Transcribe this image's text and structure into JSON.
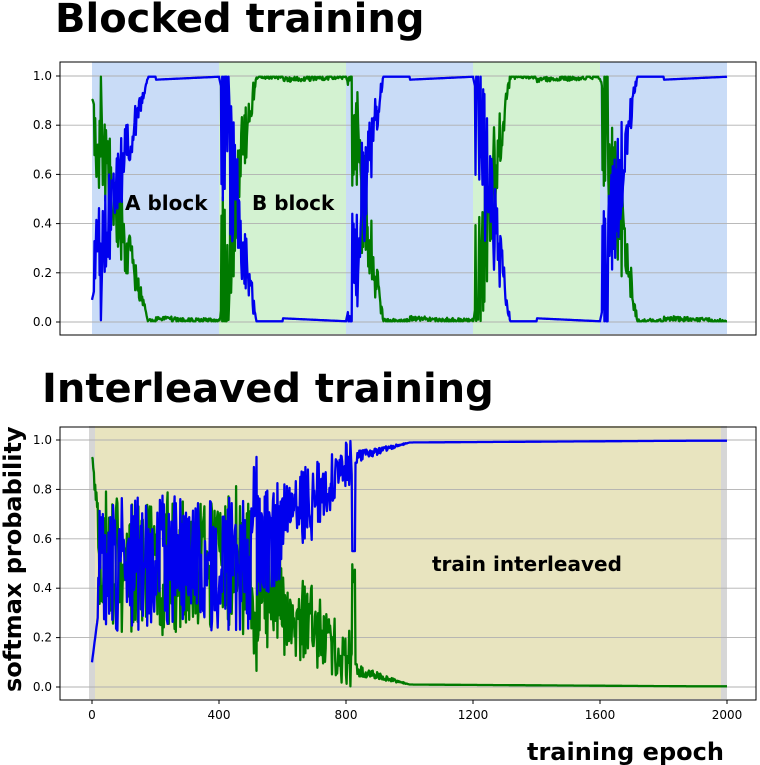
{
  "chart_data": [
    {
      "type": "line",
      "title": "Blocked training",
      "xlim": [
        0,
        2000
      ],
      "ylim": [
        0,
        1
      ],
      "yticks": [
        "0.0",
        "0.2",
        "0.4",
        "0.6",
        "0.8",
        "1.0"
      ],
      "grid": "horizontal",
      "regions": [
        {
          "label": "A block",
          "from": 0,
          "to": 400,
          "color": "#c9dcf7"
        },
        {
          "label": "B block",
          "from": 400,
          "to": 800,
          "color": "#d3f2d1"
        },
        {
          "label": "",
          "from": 800,
          "to": 1200,
          "color": "#c9dcf7"
        },
        {
          "label": "",
          "from": 1200,
          "to": 1600,
          "color": "#d3f2d1"
        },
        {
          "label": "",
          "from": 1600,
          "to": 2000,
          "color": "#c9dcf7"
        }
      ],
      "series": [
        {
          "color": "#0000ee",
          "role": "blue"
        },
        {
          "color": "#007a00",
          "role": "green"
        }
      ]
    },
    {
      "type": "line",
      "title": "Interleaved training",
      "xlim": [
        0,
        2000
      ],
      "ylim": [
        0,
        1
      ],
      "xticks": [
        "0",
        "400",
        "800",
        "1200",
        "1600",
        "2000"
      ],
      "yticks": [
        "0.0",
        "0.2",
        "0.4",
        "0.6",
        "0.8",
        "1.0"
      ],
      "xlabel": "training epoch",
      "ylabel": "softmax probability",
      "grid": "horizontal",
      "regions": [
        {
          "label": "train interleaved",
          "from": 0,
          "to": 2000,
          "color": "#e8e4bf"
        }
      ],
      "series": [
        {
          "color": "#0000ee",
          "role": "blue"
        },
        {
          "color": "#007a00",
          "role": "green"
        }
      ]
    }
  ]
}
